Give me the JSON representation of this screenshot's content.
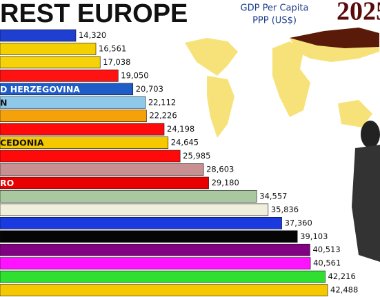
{
  "chart_data": {
    "type": "bar",
    "orientation": "horizontal",
    "title": "REST EUROPE",
    "subtitle": [
      "GDP Per Capita",
      "PPP (US$)"
    ],
    "year": "2025",
    "categories": [
      null,
      null,
      null,
      null,
      "D HERZEGOVINA",
      "N",
      null,
      null,
      "CEDONIA",
      null,
      null,
      "RO",
      null,
      null,
      null,
      null,
      null,
      null,
      null,
      null
    ],
    "values": [
      14320,
      16561,
      17038,
      19050,
      20703,
      22112,
      22226,
      24198,
      24645,
      25985,
      28603,
      29180,
      34557,
      35836,
      37360,
      39103,
      40513,
      40561,
      42216,
      42488
    ],
    "value_labels": [
      "14,320",
      "16,561",
      "17,038",
      "19,050",
      "20,703",
      "22,112",
      "22,226",
      "24,198",
      "24,645",
      "25,985",
      "28,603",
      "29,180",
      "34,557",
      "35,836",
      "37,360",
      "39,103",
      "40,513",
      "40,561",
      "42,216",
      "42,488"
    ],
    "colors": [
      "#1f3fd0",
      "#f5d000",
      "#f5d20a",
      "#ff1212",
      "#1e5cc8",
      "#8ec9ea",
      "#f5a20a",
      "#ff0a0a",
      "#f5c800",
      "#ff0a0a",
      "#c89090",
      "#e80000",
      "#a9c8a0",
      "#f0efdc",
      "#1a3ae0",
      "#050505",
      "#820082",
      "#ff12ff",
      "#30e030",
      "#f5c800"
    ]
  }
}
